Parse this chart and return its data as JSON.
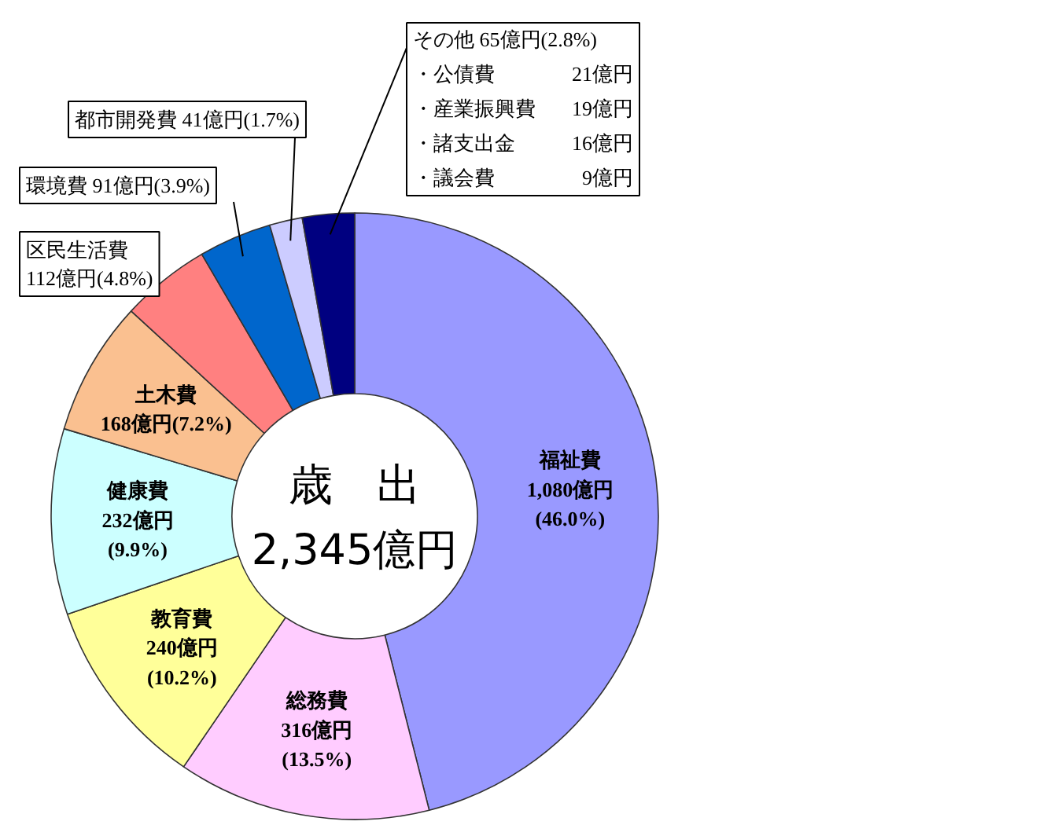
{
  "chart_data": {
    "type": "donut",
    "title": "歳　出",
    "subtitle": "2,345億円",
    "categories": [
      "福祉費",
      "総務費",
      "教育費",
      "健康費",
      "土木費",
      "区民生活費",
      "環境費",
      "都市開発費",
      "その他"
    ],
    "values": [
      1080,
      316,
      240,
      232,
      168,
      112,
      91,
      41,
      65
    ],
    "colors": [
      "#9999ff",
      "#ffccff",
      "#ffff99",
      "#ccffff",
      "#fac090",
      "#ff8080",
      "#0066cc",
      "#ccccff",
      "#000080"
    ],
    "value_labels": [
      "1,080億円\n(46.0%)",
      "316億円\n(13.5%)",
      "240億円\n(10.2%)",
      "232億円\n(9.9%)",
      "168億円(7.2%)",
      "112億円(4.8%)",
      "91億円(3.9%)",
      "41億円(1.7%)",
      "65億円(2.8%)"
    ],
    "annotations": [
      "・公債費 21億円",
      "・産業振興費 19億円",
      "・諸支出金 16億円",
      "・議会費 9億円"
    ]
  }
}
